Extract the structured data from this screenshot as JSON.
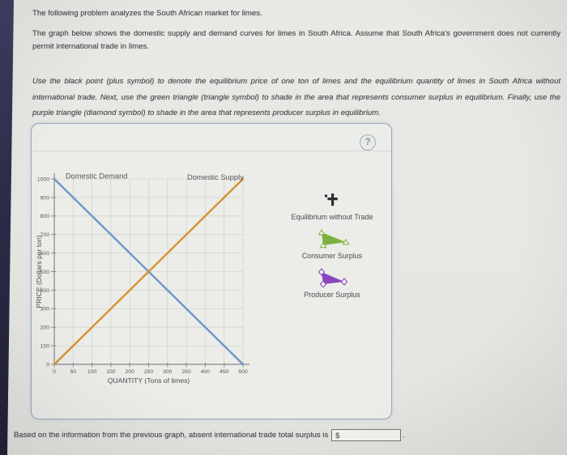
{
  "page": {
    "intro": "The following problem analyzes the South African market for limes.",
    "description": "The graph below shows the domestic supply and demand curves for limes in South Africa. Assume that South Africa's government does not currently permit international trade in limes.",
    "instructions": "Use the black point (plus symbol) to denote the equilibrium price of one ton of limes and the equilibrium quantity of limes in South Africa without international trade. Next, use the green triangle (triangle symbol) to shade in the area that represents consumer surplus in equilibrium. Finally, use the purple triangle (diamond symbol) to shade in the area that represents producer surplus in equilibrium.",
    "question_prefix": "Based on the information from the previous graph, absent international trade total surplus is",
    "question_suffix": ".",
    "answer_input": {
      "prefix": "$",
      "value": ""
    }
  },
  "panel": {
    "help_icon": "?"
  },
  "legend": [
    {
      "label": "Equilibrium without Trade",
      "marker": "black-plus-icon",
      "color": "#2c2e34"
    },
    {
      "label": "Consumer Surplus",
      "marker": "green-triangle-icon",
      "color": "#7eb13e"
    },
    {
      "label": "Producer Surplus",
      "marker": "purple-diamond-triangle-icon",
      "color": "#8a46be"
    }
  ],
  "chart_data": {
    "type": "line",
    "title": "",
    "xlabel": "QUANTITY (Tons of limes)",
    "ylabel": "PRICE (Dollars per ton)",
    "xlim": [
      0,
      500
    ],
    "ylim": [
      0,
      1000
    ],
    "x_ticks": [
      0,
      50,
      100,
      150,
      200,
      250,
      300,
      350,
      400,
      450,
      500
    ],
    "y_ticks": [
      0,
      100,
      200,
      300,
      400,
      500,
      600,
      700,
      800,
      900,
      1000
    ],
    "grid": true,
    "legend_position": "right",
    "series": [
      {
        "name": "Domestic Demand",
        "color": "#6e96c8",
        "points": [
          [
            0,
            1000
          ],
          [
            500,
            0
          ]
        ],
        "label_anchor": [
          30,
          1015
        ]
      },
      {
        "name": "Domestic Supply",
        "color": "#d9912f",
        "points": [
          [
            0,
            0
          ],
          [
            500,
            1000
          ]
        ],
        "label_anchor": [
          352,
          1008
        ]
      }
    ],
    "equilibrium": {
      "quantity": 250,
      "price": 500
    }
  }
}
